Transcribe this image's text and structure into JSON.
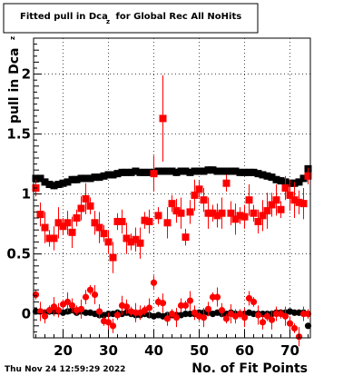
{
  "chart_data": {
    "type": "scatter",
    "title_main": "Fitted pull in Dca",
    "title_sub": "z",
    "title_rest": " for Global Rec All NoHits",
    "xlabel": "No. of Fit Points",
    "ylabel_main": "pull in Dca",
    "ylabel_sub": "z",
    "timestamp": "Thu Nov 24 12:59:29 2022",
    "xlim": [
      13.5,
      74.5
    ],
    "ylim": [
      -0.2,
      2.3
    ],
    "xticks": [
      "20",
      "30",
      "40",
      "50",
      "60",
      "70"
    ],
    "yticks": [
      "0",
      "0.5",
      "1",
      "1.5",
      "2"
    ],
    "grid": true,
    "colors": {
      "black_series": "#000000",
      "red_series": "#ff0000",
      "frame": "#000000",
      "grid": "#000000"
    },
    "x": [
      14,
      15,
      16,
      17,
      18,
      19,
      20,
      21,
      22,
      23,
      24,
      25,
      26,
      27,
      28,
      29,
      30,
      31,
      32,
      33,
      34,
      35,
      36,
      37,
      38,
      39,
      40,
      41,
      42,
      43,
      44,
      45,
      46,
      47,
      48,
      49,
      50,
      51,
      52,
      53,
      54,
      55,
      56,
      57,
      58,
      59,
      60,
      61,
      62,
      63,
      64,
      65,
      66,
      67,
      68,
      69,
      70,
      71,
      72,
      73,
      74
    ],
    "series": [
      {
        "marker": "square",
        "color": "#000000",
        "y": [
          1.13,
          1.13,
          1.1,
          1.08,
          1.07,
          1.08,
          1.09,
          1.1,
          1.12,
          1.12,
          1.13,
          1.13,
          1.13,
          1.14,
          1.14,
          1.15,
          1.16,
          1.16,
          1.17,
          1.18,
          1.18,
          1.18,
          1.19,
          1.18,
          1.18,
          1.18,
          1.18,
          1.19,
          1.19,
          1.19,
          1.19,
          1.18,
          1.19,
          1.19,
          1.18,
          1.19,
          1.19,
          1.19,
          1.2,
          1.2,
          1.19,
          1.19,
          1.19,
          1.19,
          1.19,
          1.18,
          1.18,
          1.18,
          1.18,
          1.17,
          1.16,
          1.15,
          1.14,
          1.12,
          1.11,
          1.1,
          1.09,
          1.09,
          1.1,
          1.13,
          1.21
        ]
      },
      {
        "marker": "square",
        "color": "#ff0000",
        "y": [
          1.05,
          0.83,
          0.72,
          0.63,
          0.63,
          0.76,
          0.73,
          0.76,
          0.68,
          0.8,
          0.88,
          0.96,
          0.9,
          0.76,
          0.72,
          0.67,
          0.6,
          0.47,
          0.77,
          0.77,
          0.63,
          0.6,
          0.62,
          0.59,
          0.78,
          0.77,
          1.17,
          0.82,
          1.63,
          0.76,
          0.92,
          0.86,
          0.84,
          0.64,
          0.85,
          0.99,
          1.04,
          0.95,
          0.84,
          0.84,
          0.82,
          0.84,
          1.09,
          0.84,
          0.79,
          0.82,
          0.81,
          0.95,
          0.84,
          0.77,
          0.82,
          0.86,
          0.91,
          0.95,
          0.87,
          1.05,
          0.99,
          0.95,
          0.93,
          0.92,
          1.15
        ]
      },
      {
        "marker": "circle",
        "color": "#000000",
        "y": [
          0.02,
          0.02,
          0.01,
          0.02,
          0.02,
          0.02,
          0.01,
          0.02,
          0.03,
          0.01,
          0.02,
          0.01,
          0.01,
          0.0,
          -0.01,
          -0.01,
          0.0,
          0.0,
          0.01,
          0.0,
          0.01,
          0.0,
          -0.01,
          -0.01,
          0.0,
          -0.01,
          -0.02,
          -0.01,
          -0.02,
          -0.01,
          -0.01,
          -0.01,
          -0.01,
          0.0,
          0.0,
          0.0,
          0.01,
          0.01,
          0.01,
          0.0,
          0.01,
          0.0,
          0.0,
          0.01,
          0.0,
          0.0,
          0.0,
          0.01,
          0.0,
          0.0,
          0.0,
          0.0,
          0.0,
          0.01,
          0.01,
          0.01,
          0.02,
          0.01,
          0.01,
          0.01,
          -0.1
        ]
      },
      {
        "marker": "circle",
        "color": "#ff0000",
        "y": [
          0.16,
          0.02,
          -0.02,
          0.03,
          0.06,
          0.03,
          0.08,
          0.1,
          0.07,
          0.03,
          0.04,
          0.14,
          0.2,
          0.16,
          0.02,
          -0.06,
          -0.07,
          -0.1,
          -0.01,
          0.07,
          0.06,
          0.02,
          0.01,
          0.01,
          0.03,
          0.05,
          0.26,
          0.1,
          0.09,
          -0.04,
          0.0,
          -0.03,
          0.07,
          0.07,
          0.11,
          0.01,
          -0.02,
          -0.03,
          0.04,
          0.14,
          0.14,
          0.03,
          -0.04,
          0.0,
          -0.02,
          0.0,
          -0.03,
          0.13,
          0.1,
          -0.01,
          -0.07,
          -0.02,
          -0.05,
          0.0,
          0.0,
          -0.02,
          -0.08,
          -0.12,
          -0.19,
          0.0,
          0.0
        ]
      }
    ]
  }
}
